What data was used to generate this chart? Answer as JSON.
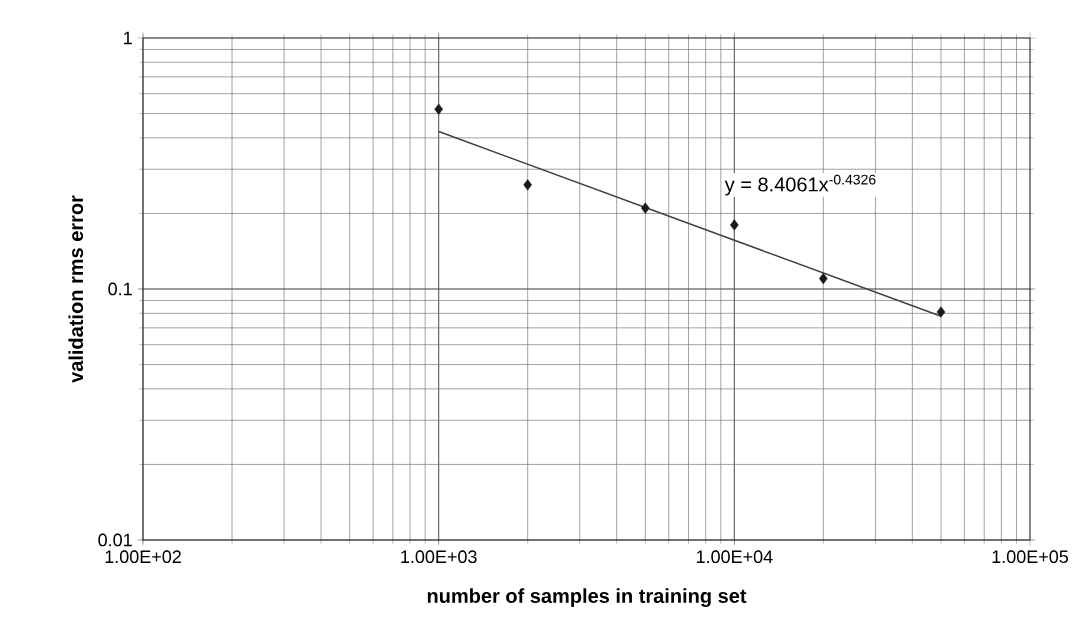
{
  "chart_data": {
    "type": "scatter",
    "xlabel": "number of samples in training set",
    "ylabel": "validation rms error",
    "log": "xy",
    "grid": true,
    "xlim": [
      100,
      100000
    ],
    "xticks": [
      {
        "value": 100,
        "label": "1.00E+02"
      },
      {
        "value": 1000,
        "label": "1.00E+03"
      },
      {
        "value": 10000,
        "label": "1.00E+04"
      },
      {
        "value": 100000,
        "label": "1.00E+05"
      }
    ],
    "ylim": [
      0.01,
      1
    ],
    "yticks": [
      0.01,
      0.1,
      1
    ],
    "series": [
      {
        "marker": "diamond",
        "color": "#1a1a1a",
        "x": [
          1000,
          2000,
          5000,
          10000,
          20000,
          50000
        ],
        "values": [
          0.52,
          0.26,
          0.21,
          0.18,
          0.11,
          0.081
        ]
      },
      {
        "type": "line",
        "color": "#404040",
        "x": [
          1000,
          50000
        ],
        "values": [
          0.424,
          0.0779
        ]
      }
    ],
    "annotations": [
      "y = 8.4061x$^{-0.4326}$"
    ]
  }
}
